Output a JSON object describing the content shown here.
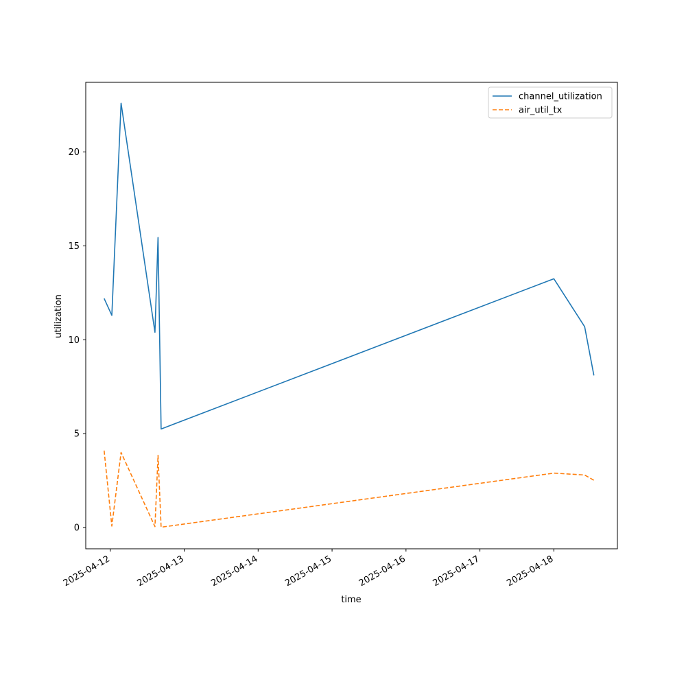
{
  "chart_data": {
    "type": "line",
    "xlabel": "time",
    "ylabel": "utilization",
    "x_scale": "date",
    "xlim": [
      "2025-04-11 16:02",
      "2025-04-18 20:38"
    ],
    "ylim": [
      -1.13,
      23.71
    ],
    "x_ticks": [
      "2025-04-12",
      "2025-04-13",
      "2025-04-14",
      "2025-04-15",
      "2025-04-16",
      "2025-04-17",
      "2025-04-18"
    ],
    "y_ticks": [
      0,
      5,
      10,
      15,
      20
    ],
    "legend_position": "top-right",
    "grid": false,
    "series": [
      {
        "name": "channel_utilization",
        "color": "#1f77b4",
        "style": "solid",
        "points": [
          [
            "2025-04-11 22:00",
            12.2
          ],
          [
            "2025-04-12 00:30",
            11.3
          ],
          [
            "2025-04-12 03:30",
            22.6
          ],
          [
            "2025-04-12 14:30",
            10.4
          ],
          [
            "2025-04-12 15:30",
            15.45
          ],
          [
            "2025-04-12 16:30",
            5.25
          ],
          [
            "2025-04-18 00:00",
            13.25
          ],
          [
            "2025-04-18 10:00",
            10.7
          ],
          [
            "2025-04-18 13:00",
            8.1
          ]
        ]
      },
      {
        "name": "air_util_tx",
        "color": "#ff7f0e",
        "style": "dashed",
        "points": [
          [
            "2025-04-11 22:00",
            4.1
          ],
          [
            "2025-04-12 00:30",
            0.08
          ],
          [
            "2025-04-12 03:30",
            4.0
          ],
          [
            "2025-04-12 14:30",
            0.05
          ],
          [
            "2025-04-12 15:30",
            3.85
          ],
          [
            "2025-04-12 16:30",
            0.02
          ],
          [
            "2025-04-18 00:00",
            2.9
          ],
          [
            "2025-04-18 10:00",
            2.8
          ],
          [
            "2025-04-18 13:00",
            2.52
          ]
        ]
      }
    ]
  }
}
